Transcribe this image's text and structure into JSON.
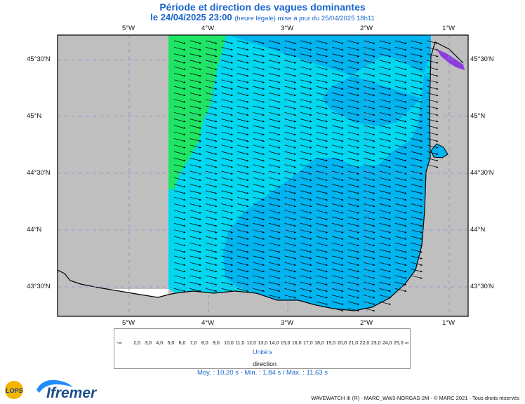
{
  "header": {
    "title": "Période et direction des vagues dominantes",
    "date_line": "le 24/04/2025 23:00",
    "update_note": "(heure légale) mise à jour du 25/04/2025 18h11"
  },
  "axes": {
    "lon_labels": [
      "5°W",
      "4°W",
      "3°W",
      "2°W",
      "1°W"
    ],
    "lat_labels": [
      "45°30'N",
      "45°N",
      "44°30'N",
      "44°N",
      "43°30'N"
    ]
  },
  "legend": {
    "values": [
      "-∞",
      "2,0",
      "3,0",
      "4,0",
      "5,0",
      "6,0",
      "7,0",
      "8,0",
      "9,0",
      "10,0",
      "11,0",
      "12,0",
      "13,0",
      "14,0",
      "15,0",
      "16,0",
      "17,0",
      "18,0",
      "19,0",
      "20,0",
      "21,0",
      "22,0",
      "23,0",
      "24,0",
      "25,0",
      "∞"
    ],
    "colors": [
      "#b4a0c8",
      "#8c3cdc",
      "#6428f0",
      "#3c3cff",
      "#1e64ff",
      "#1e8cff",
      "#14aaf0",
      "#14d2f0",
      "#00ffff",
      "#00e6c8",
      "#28e67a",
      "#64e650",
      "#a0f050",
      "#dcf03c",
      "#ffe61e",
      "#ffc814",
      "#ffa014",
      "#ff7814",
      "#ff5014",
      "#ff2814",
      "#f01414",
      "#dc0a0a",
      "#c80000",
      "#b40000"
    ],
    "units": "Unité:s",
    "direction_label": "direction"
  },
  "stats": "Moy. : 10,20 s   -   Min. : 1,84 s / Max. : 11,63 s",
  "credit": "WAVEWATCH III (R) - MARC_WW3-NORGAS-2M - © MARC 2021 - Tous droits réservés",
  "brand": {
    "name": "Ifremer",
    "lops": "LOPS"
  },
  "map_colors": {
    "land": "#bfbfbf",
    "period_10": "#00d7f0",
    "period_11": "#00b4f0",
    "period_12": "#1ee664",
    "grid": "#8c8cd2"
  }
}
